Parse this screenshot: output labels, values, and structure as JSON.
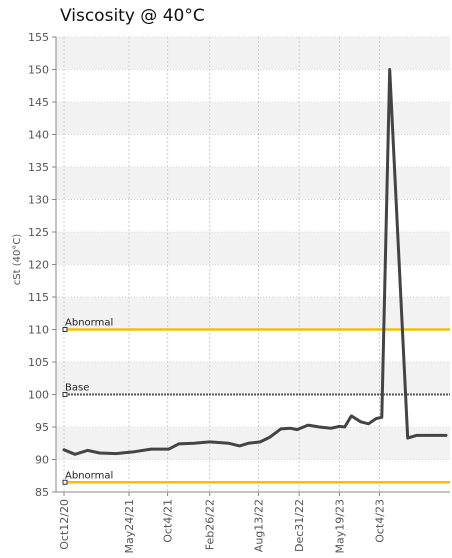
{
  "title": "Viscosity @ 40°C",
  "chart_data": {
    "type": "line",
    "title": "Viscosity @ 40°C",
    "ylabel": "cSt (40°C)",
    "xlabel": "",
    "ylim": [
      85,
      155
    ],
    "y_ticks": [
      85,
      90,
      95,
      100,
      105,
      110,
      115,
      120,
      125,
      130,
      135,
      140,
      145,
      150,
      155
    ],
    "x_range": [
      "2020-10-12",
      "2024-05-20"
    ],
    "x_ticks": [
      {
        "label": "Oct12/20",
        "date": "2020-10-12"
      },
      {
        "label": "May24/21",
        "date": "2021-05-24"
      },
      {
        "label": "Oct4/21",
        "date": "2021-10-04"
      },
      {
        "label": "Feb26/22",
        "date": "2022-02-26"
      },
      {
        "label": "Aug13/22",
        "date": "2022-08-13"
      },
      {
        "label": "Dec31/22",
        "date": "2022-12-31"
      },
      {
        "label": "May19/23",
        "date": "2023-05-19"
      },
      {
        "label": "Oct4/23",
        "date": "2023-10-04"
      }
    ],
    "grid": true,
    "reference_lines": [
      {
        "label": "Abnormal",
        "value": 110,
        "color": "#f5c000",
        "style": "solid"
      },
      {
        "label": "Base",
        "value": 100,
        "color": "#555555",
        "style": "dotted"
      },
      {
        "label": "Abnormal",
        "value": 86.5,
        "color": "#f5c000",
        "style": "solid"
      }
    ],
    "series": [
      {
        "color": "#444444",
        "points": [
          {
            "x": "2020-10-12",
            "y": 91.5
          },
          {
            "x": "2020-11-19",
            "y": 90.8
          },
          {
            "x": "2021-01-01",
            "y": 91.4
          },
          {
            "x": "2021-02-12",
            "y": 91.0
          },
          {
            "x": "2021-04-09",
            "y": 90.9
          },
          {
            "x": "2021-06-12",
            "y": 91.2
          },
          {
            "x": "2021-08-08",
            "y": 91.6
          },
          {
            "x": "2021-10-08",
            "y": 91.6
          },
          {
            "x": "2021-11-11",
            "y": 92.4
          },
          {
            "x": "2022-01-03",
            "y": 92.5
          },
          {
            "x": "2022-02-26",
            "y": 92.7
          },
          {
            "x": "2022-05-03",
            "y": 92.5
          },
          {
            "x": "2022-06-09",
            "y": 92.1
          },
          {
            "x": "2022-07-09",
            "y": 92.5
          },
          {
            "x": "2022-08-19",
            "y": 92.7
          },
          {
            "x": "2022-09-20",
            "y": 93.4
          },
          {
            "x": "2022-10-29",
            "y": 94.7
          },
          {
            "x": "2022-12-02",
            "y": 94.8
          },
          {
            "x": "2022-12-24",
            "y": 94.6
          },
          {
            "x": "2023-01-31",
            "y": 95.3
          },
          {
            "x": "2023-03-11",
            "y": 95.0
          },
          {
            "x": "2023-04-19",
            "y": 94.8
          },
          {
            "x": "2023-05-19",
            "y": 95.1
          },
          {
            "x": "2023-06-06",
            "y": 95.0
          },
          {
            "x": "2023-06-29",
            "y": 96.7
          },
          {
            "x": "2023-07-31",
            "y": 95.8
          },
          {
            "x": "2023-08-27",
            "y": 95.5
          },
          {
            "x": "2023-09-22",
            "y": 96.3
          },
          {
            "x": "2023-10-12",
            "y": 96.5
          },
          {
            "x": "2023-11-08",
            "y": 150.0
          },
          {
            "x": "2024-01-09",
            "y": 93.3
          },
          {
            "x": "2024-02-08",
            "y": 93.7
          },
          {
            "x": "2024-05-20",
            "y": 93.7
          }
        ]
      }
    ]
  }
}
